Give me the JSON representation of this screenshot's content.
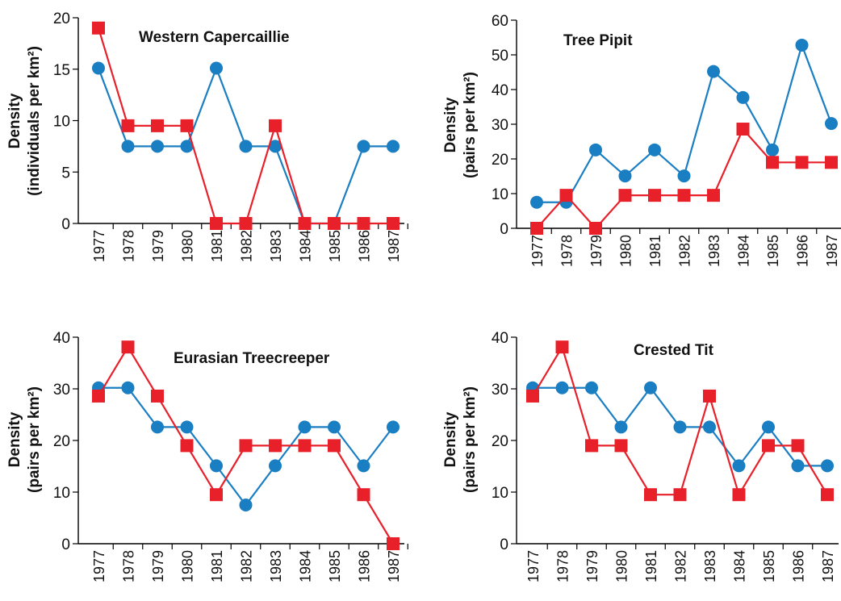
{
  "colors": {
    "blue": "#1a7ec2",
    "red": "#e8202a",
    "axis": "#000000"
  },
  "chart_data": [
    {
      "type": "line",
      "title": "Western Capercaillie",
      "ylabel": [
        "Density",
        "(individuals per km²)"
      ],
      "ylim": [
        0,
        20
      ],
      "yticks": [
        0,
        5,
        10,
        15,
        20
      ],
      "categories": [
        "1977",
        "1978",
        "1979",
        "1980",
        "1981",
        "1982",
        "1983",
        "1984",
        "1985",
        "1986",
        "1987"
      ],
      "series": [
        {
          "values": [
            15.1,
            7.5,
            7.5,
            7.5,
            15.1,
            7.5,
            7.5,
            0,
            0,
            7.5,
            7.5
          ],
          "marker": "circle",
          "color": "#1a7ec2"
        },
        {
          "values": [
            19.0,
            9.5,
            9.5,
            9.5,
            0,
            0,
            9.5,
            0,
            0,
            0,
            0
          ],
          "marker": "square",
          "color": "#e8202a"
        }
      ]
    },
    {
      "type": "line",
      "title": "Tree Pipit",
      "ylabel": [
        "Density",
        "(pairs per km²)"
      ],
      "ylim": [
        0,
        60
      ],
      "yticks": [
        0,
        10,
        20,
        30,
        40,
        50,
        60
      ],
      "categories": [
        "1977",
        "1978",
        "1979",
        "1980",
        "1981",
        "1982",
        "1983",
        "1984",
        "1985",
        "1986",
        "1987"
      ],
      "series": [
        {
          "values": [
            7.5,
            7.5,
            22.6,
            15.1,
            22.6,
            15.1,
            45.2,
            37.7,
            22.6,
            52.8,
            30.2
          ],
          "marker": "circle",
          "color": "#1a7ec2"
        },
        {
          "values": [
            0,
            9.5,
            0,
            9.5,
            9.5,
            9.5,
            9.5,
            28.6,
            19.0,
            19.0,
            19.0
          ],
          "marker": "square",
          "color": "#e8202a"
        }
      ]
    },
    {
      "type": "line",
      "title": "Eurasian Treecreeper",
      "ylabel": [
        "Density",
        "(pairs per km²)"
      ],
      "ylim": [
        0,
        40
      ],
      "yticks": [
        0,
        10,
        20,
        30,
        40
      ],
      "categories": [
        "1977",
        "1978",
        "1979",
        "1980",
        "1981",
        "1982",
        "1983",
        "1984",
        "1985",
        "1986",
        "1987"
      ],
      "series": [
        {
          "values": [
            30.2,
            30.2,
            22.6,
            22.6,
            15.1,
            7.5,
            15.1,
            22.6,
            22.6,
            15.1,
            22.6
          ],
          "marker": "circle",
          "color": "#1a7ec2"
        },
        {
          "values": [
            28.6,
            38.1,
            28.6,
            19.0,
            9.5,
            19.0,
            19.0,
            19.0,
            19.0,
            9.5,
            0
          ],
          "marker": "square",
          "color": "#e8202a"
        }
      ]
    },
    {
      "type": "line",
      "title": "Crested Tit",
      "ylabel": [
        "Density",
        "(pairs per km²)"
      ],
      "ylim": [
        0,
        40
      ],
      "yticks": [
        0,
        10,
        20,
        30,
        40
      ],
      "categories": [
        "1977",
        "1978",
        "1979",
        "1980",
        "1981",
        "1982",
        "1983",
        "1984",
        "1985",
        "1986",
        "1987"
      ],
      "series": [
        {
          "values": [
            30.2,
            30.2,
            30.2,
            22.6,
            30.2,
            22.6,
            22.6,
            15.1,
            22.6,
            15.1,
            15.1
          ],
          "marker": "circle",
          "color": "#1a7ec2"
        },
        {
          "values": [
            28.6,
            38.1,
            19.0,
            19.0,
            9.5,
            9.5,
            28.6,
            9.5,
            19.0,
            19.0,
            9.5
          ],
          "marker": "square",
          "color": "#e8202a"
        }
      ]
    }
  ]
}
